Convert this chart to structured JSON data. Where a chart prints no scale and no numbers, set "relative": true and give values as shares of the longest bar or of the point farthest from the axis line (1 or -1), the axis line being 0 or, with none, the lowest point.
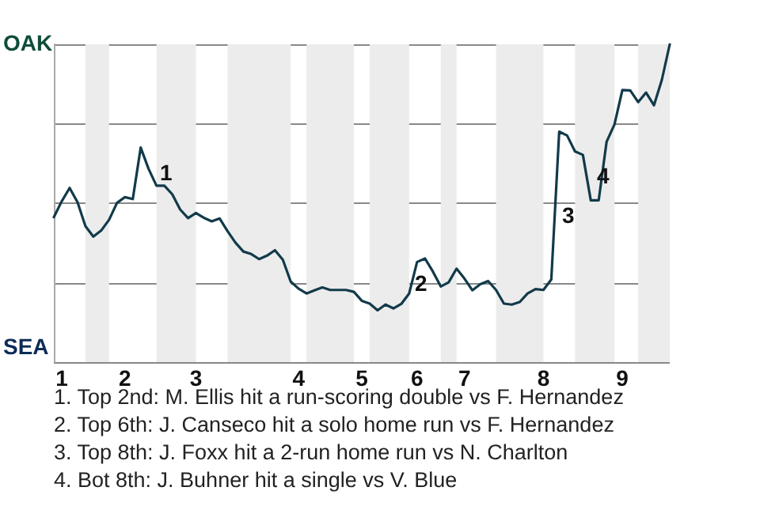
{
  "chart_data": {
    "type": "line",
    "relative": true,
    "categories": [
      null,
      "1",
      null,
      null,
      null,
      null,
      null,
      null,
      null,
      "2",
      null,
      null,
      null,
      null,
      null,
      null,
      null,
      null,
      "3",
      null,
      null,
      null,
      null,
      null,
      null,
      null,
      null,
      null,
      null,
      null,
      null,
      "4",
      null,
      null,
      null,
      null,
      null,
      null,
      null,
      "5",
      null,
      null,
      null,
      null,
      null,
      null,
      "6",
      null,
      null,
      null,
      null,
      null,
      "7",
      null,
      null,
      null,
      null,
      null,
      null,
      null,
      null,
      null,
      "8",
      null,
      null,
      null,
      null,
      null,
      null,
      null,
      null,
      null,
      "9",
      null,
      null,
      null,
      null,
      null,
      null
    ],
    "series": [
      {
        "color": "#123a4a",
        "values": [
          0.456,
          0.506,
          0.548,
          0.503,
          0.428,
          0.395,
          0.414,
          0.448,
          0.501,
          0.519,
          0.513,
          0.675,
          0.608,
          0.555,
          0.555,
          0.528,
          0.48,
          0.453,
          0.469,
          0.454,
          0.443,
          0.452,
          0.412,
          0.376,
          0.348,
          0.34,
          0.324,
          0.335,
          0.352,
          0.322,
          0.253,
          0.231,
          0.216,
          0.226,
          0.235,
          0.227,
          0.227,
          0.227,
          0.221,
          0.193,
          0.184,
          0.163,
          0.181,
          0.169,
          0.183,
          0.216,
          0.315,
          0.326,
          0.285,
          0.238,
          0.251,
          0.294,
          0.263,
          0.226,
          0.245,
          0.255,
          0.227,
          0.184,
          0.181,
          0.189,
          0.216,
          0.23,
          0.227,
          0.26,
          0.725,
          0.713,
          0.663,
          0.652,
          0.509,
          0.509,
          0.693,
          0.748,
          0.856,
          0.855,
          0.818,
          0.848,
          0.808,
          0.888,
          1
        ]
      }
    ],
    "grid": "y",
    "annotations": [
      "OAK",
      "SEA",
      "1",
      "2",
      "3",
      "4",
      "1. Top 2nd: M. Ellis hit a run-scoring double vs F. Hernandez",
      "2. Top 6th: J. Canseco hit a solo home run vs F. Hernandez",
      "3. Top 8th: J. Foxx hit a 2-run home run vs N. Charlton",
      "4. Bot 8th: J. Buhner hit a single vs V. Blue"
    ],
    "marker": "none"
  }
}
